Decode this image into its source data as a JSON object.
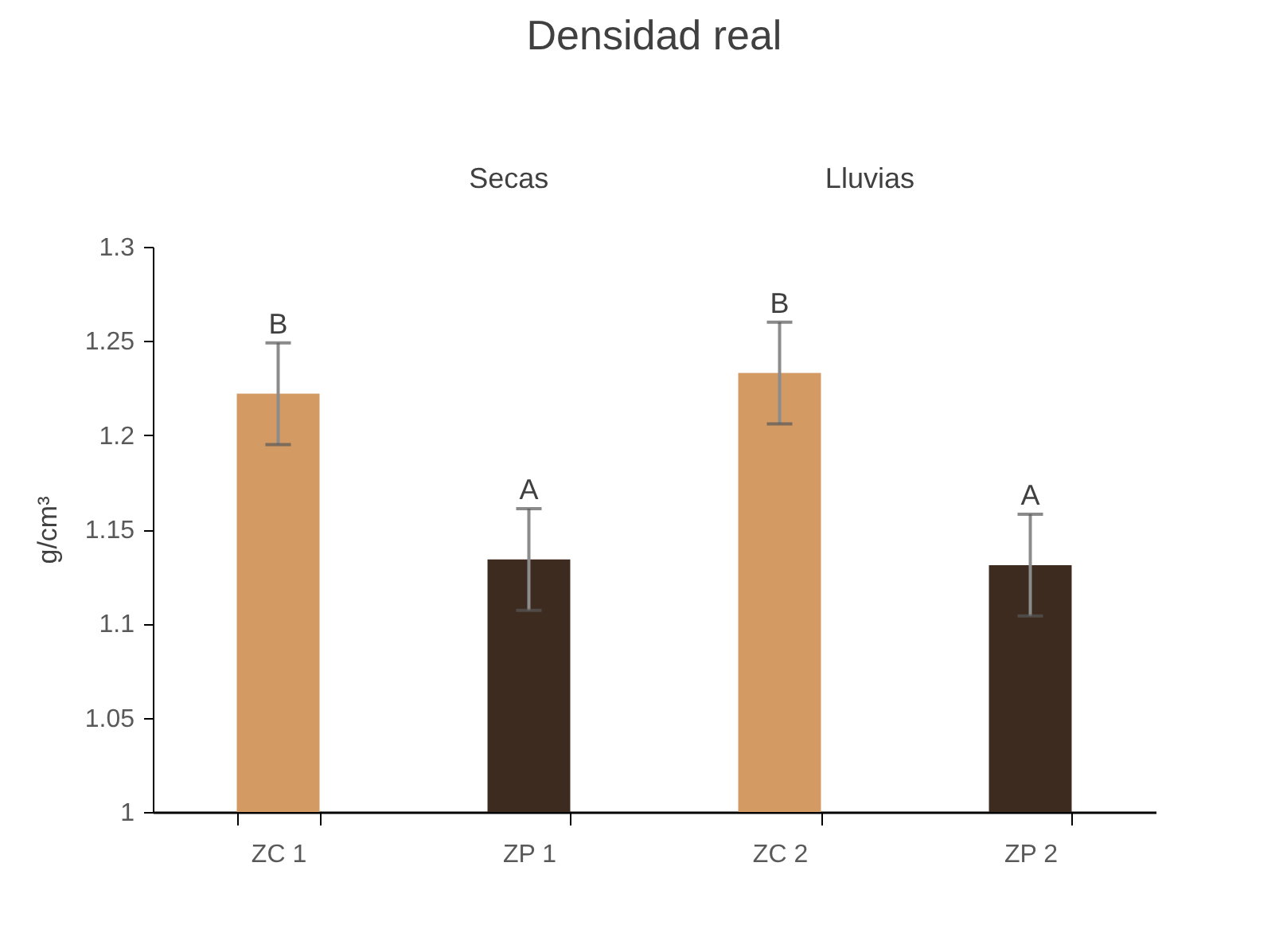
{
  "chart_data": {
    "type": "bar",
    "title": "Densidad real",
    "ylabel": "g/cm³",
    "categories": [
      "ZC 1",
      "ZP 1",
      "ZC 2",
      "ZP 2"
    ],
    "values": [
      1.222,
      1.134,
      1.233,
      1.131
    ],
    "colors": [
      "#d39a64",
      "#3d2b1f",
      "#d39a64",
      "#3d2b1f"
    ],
    "errors": [
      0.027,
      0.027,
      0.027,
      0.027
    ],
    "ylim": [
      1,
      1.3
    ],
    "yticks": [
      1,
      1.05,
      1.1,
      1.15,
      1.2,
      1.25,
      1.3
    ],
    "grid": false,
    "annotations": [
      {
        "text": "B",
        "x": "ZC 1",
        "y": 1.249
      },
      {
        "text": "A",
        "x": "ZP 1",
        "y": 1.161
      },
      {
        "text": "B",
        "x": "ZC 2",
        "y": 1.26
      },
      {
        "text": "A",
        "x": "ZP 2",
        "y": 1.158
      },
      "Secas",
      "Lluvias"
    ]
  }
}
